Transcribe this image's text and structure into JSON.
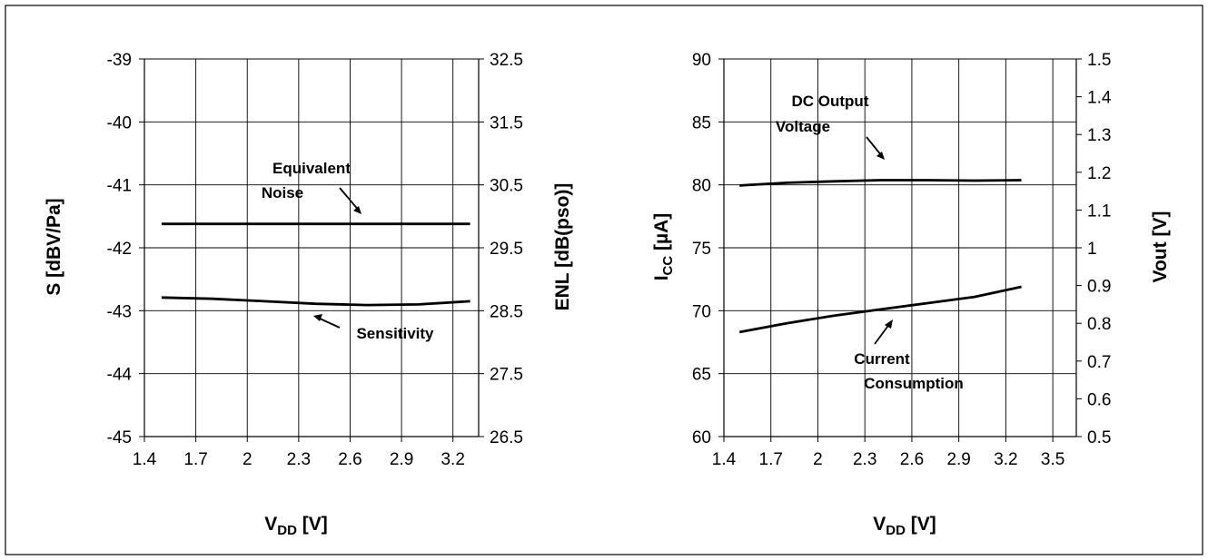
{
  "chart_data": [
    {
      "type": "line",
      "title": "",
      "x_axis": {
        "label_main": "V",
        "label_sub": "DD",
        "label_unit": " [V]",
        "min": 1.4,
        "max": 3.35,
        "ticks": [
          1.4,
          1.7,
          2.0,
          2.3,
          2.6,
          2.9,
          3.2
        ],
        "tick_labels": [
          "1.4",
          "1.7",
          "2",
          "2.3",
          "2.6",
          "2.9",
          "3.2"
        ]
      },
      "y_left": {
        "label": "S [dBV/Pa]",
        "min": -45,
        "max": -39,
        "ticks": [
          -45,
          -44,
          -43,
          -42,
          -41,
          -40,
          -39
        ],
        "tick_labels": [
          "-45",
          "-44",
          "-43",
          "-42",
          "-41",
          "-40",
          "-39"
        ]
      },
      "y_right": {
        "label": "ENL [dB(pso)]",
        "min": 26.5,
        "max": 32.5,
        "ticks": [
          26.5,
          27.5,
          28.5,
          29.5,
          30.5,
          31.5,
          32.5
        ],
        "tick_labels": [
          "26.5",
          "27.5",
          "28.5",
          "29.5",
          "30.5",
          "31.5",
          "32.5"
        ]
      },
      "grid": true,
      "series": [
        {
          "axis": "right",
          "x": [
            1.5,
            1.8,
            2.1,
            2.4,
            2.7,
            3.0,
            3.3
          ],
          "y": [
            29.88,
            29.88,
            29.88,
            29.88,
            29.88,
            29.88,
            29.88
          ]
        },
        {
          "axis": "left",
          "x": [
            1.5,
            1.8,
            2.1,
            2.4,
            2.7,
            3.0,
            3.3
          ],
          "y": [
            -42.79,
            -42.81,
            -42.85,
            -42.89,
            -42.91,
            -42.9,
            -42.85
          ]
        }
      ],
      "annotations": [
        {
          "lines": [
            "Equivalent",
            "Noise"
          ],
          "points_to": "right-series"
        },
        {
          "lines": [
            "Sensitivity"
          ],
          "points_to": "left-series"
        }
      ]
    },
    {
      "type": "line",
      "title": "",
      "x_axis": {
        "label_main": "V",
        "label_sub": "DD",
        "label_unit": " [V]",
        "min": 1.4,
        "max": 3.65,
        "ticks": [
          1.4,
          1.7,
          2.0,
          2.3,
          2.6,
          2.9,
          3.2,
          3.5
        ],
        "tick_labels": [
          "1.4",
          "1.7",
          "2",
          "2.3",
          "2.6",
          "2.9",
          "3.2",
          "3.5"
        ]
      },
      "y_left": {
        "label_main": "I",
        "label_sub": "CC",
        "label_unit": " [µA]",
        "min": 60,
        "max": 90,
        "ticks": [
          60,
          65,
          70,
          75,
          80,
          85,
          90
        ],
        "tick_labels": [
          "60",
          "65",
          "70",
          "75",
          "80",
          "85",
          "90"
        ]
      },
      "y_right": {
        "label": "Vout [V]",
        "min": 0.5,
        "max": 1.5,
        "ticks": [
          0.5,
          0.6,
          0.7,
          0.8,
          0.9,
          1.0,
          1.1,
          1.2,
          1.3,
          1.4,
          1.5
        ],
        "tick_labels": [
          "0.5",
          "0.6",
          "0.7",
          "0.8",
          "0.9",
          "1",
          "1.1",
          "1.2",
          "1.3",
          "1.4",
          "1.5"
        ]
      },
      "grid": true,
      "series": [
        {
          "axis": "right",
          "x": [
            1.5,
            1.8,
            2.1,
            2.4,
            2.7,
            3.0,
            3.3
          ],
          "y": [
            1.165,
            1.172,
            1.176,
            1.179,
            1.179,
            1.178,
            1.179
          ]
        },
        {
          "axis": "left",
          "x": [
            1.5,
            1.8,
            2.1,
            2.4,
            2.7,
            3.0,
            3.3
          ],
          "y": [
            68.3,
            69.0,
            69.6,
            70.1,
            70.6,
            71.1,
            71.9
          ]
        }
      ],
      "annotations": [
        {
          "lines": [
            "DC Output",
            "Voltage"
          ],
          "points_to": "right-series"
        },
        {
          "lines": [
            "Current",
            "Consumption"
          ],
          "points_to": "left-series"
        }
      ]
    }
  ]
}
